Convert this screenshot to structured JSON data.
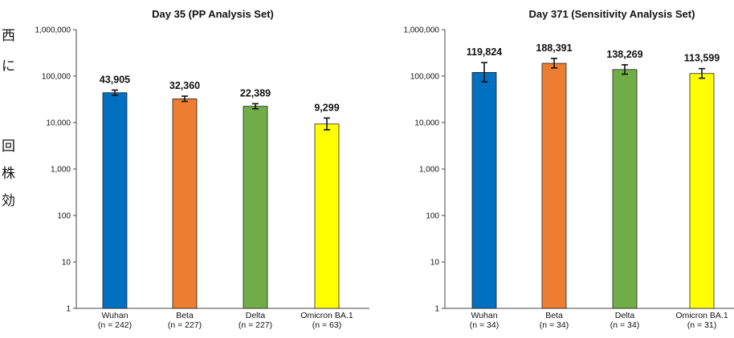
{
  "sidebar_glyphs": [
    "西",
    "に",
    "",
    "",
    "",
    "回",
    "株",
    "効"
  ],
  "chart_data": [
    {
      "type": "bar",
      "title": "Day 35 (PP Analysis Set)",
      "yscale": "log",
      "ylim": [
        1,
        1000000
      ],
      "yticks": [
        "1",
        "10",
        "100",
        "1,000",
        "10,000",
        "100,000",
        "1,000,000"
      ],
      "categories": [
        "Wuhan",
        "Beta",
        "Delta",
        "Omicron BA.1"
      ],
      "category_n": [
        "(n = 242)",
        "(n = 227)",
        "(n = 227)",
        "(n = 63)"
      ],
      "values": [
        43905,
        32360,
        22389,
        9299
      ],
      "value_labels": [
        "43,905",
        "32,360",
        "22,389",
        "9,299"
      ],
      "ci_low": [
        38500,
        28500,
        19800,
        7000
      ],
      "ci_high": [
        50000,
        37000,
        25500,
        12500
      ],
      "colors": [
        "#0070c0",
        "#ed7d31",
        "#70ad47",
        "#ffff00"
      ],
      "grid": false
    },
    {
      "type": "bar",
      "title": "Day 371 (Sensitivity  Analysis Set)",
      "yscale": "log",
      "ylim": [
        1,
        1000000
      ],
      "yticks": [
        "1",
        "10",
        "100",
        "1,000",
        "10,000",
        "100,000",
        "1,000,000"
      ],
      "categories": [
        "Wuhan",
        "Beta",
        "Delta",
        "Omicron BA.1"
      ],
      "category_n": [
        "(n = 34)",
        "(n = 34)",
        "(n = 34)",
        "(n = 31)"
      ],
      "values": [
        119824,
        188391,
        138269,
        113599
      ],
      "value_labels": [
        "119,824",
        "188,391",
        "138,269",
        "113,599"
      ],
      "ci_low": [
        75000,
        150000,
        110000,
        90000
      ],
      "ci_high": [
        195000,
        240000,
        175000,
        145000
      ],
      "colors": [
        "#0070c0",
        "#ed7d31",
        "#70ad47",
        "#ffff00"
      ],
      "grid": false
    }
  ]
}
